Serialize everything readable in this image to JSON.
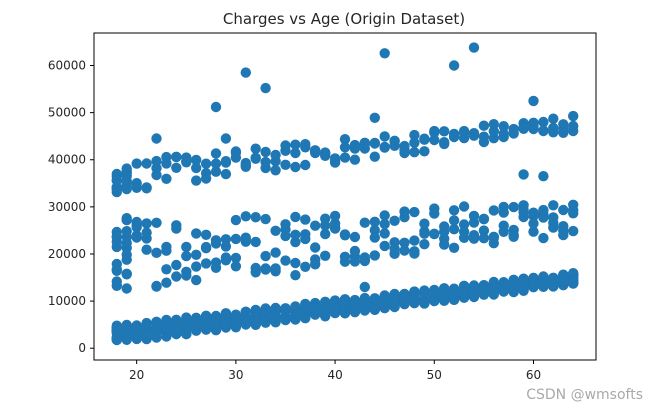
{
  "chart_data": {
    "type": "scatter",
    "title": "Charges vs Age (Origin Dataset)",
    "xlabel": "",
    "ylabel": "",
    "xlim": [
      15.7,
      66.3
    ],
    "ylim": [
      -2500,
      66900
    ],
    "xticks": [
      20,
      30,
      40,
      50,
      60
    ],
    "yticks": [
      0,
      10000,
      20000,
      30000,
      40000,
      50000,
      60000
    ],
    "color": "#1f77b4",
    "series": [
      {
        "name": "charges",
        "band_note": "Points follow three bands: low (baseline), middle, high; plus a few outliers.",
        "low_band": {
          "x_from": 18,
          "x_to": 64,
          "y_min_at_18": 1100,
          "y_max_at_18": 4800,
          "y_min_at_64": 13500,
          "y_max_at_64": 16000
        },
        "mid_band": {
          "x_from": 18,
          "x_to": 64,
          "y_min_at_18": 12000,
          "y_max_at_18": 28000,
          "y_min_at_64": 24000,
          "y_max_at_64": 31000
        },
        "high_band": {
          "x_from": 18,
          "x_to": 64,
          "y_min_at_18": 33000,
          "y_max_at_18": 39500,
          "y_min_at_64": 46000,
          "y_max_at_64": 49500
        },
        "outliers": [
          [
            22,
            44500
          ],
          [
            28,
            51200
          ],
          [
            31,
            58500
          ],
          [
            33,
            55200
          ],
          [
            45,
            62600
          ],
          [
            52,
            60000
          ],
          [
            54,
            63800
          ],
          [
            60,
            52500
          ],
          [
            59,
            36900
          ],
          [
            61,
            36500
          ],
          [
            29,
            44500
          ],
          [
            42,
            40000
          ],
          [
            44,
            48900
          ],
          [
            19,
            21300
          ],
          [
            20,
            23500
          ],
          [
            36,
            15500
          ],
          [
            43,
            13000
          ]
        ]
      }
    ]
  },
  "watermark": "CSDN @wmsofts"
}
